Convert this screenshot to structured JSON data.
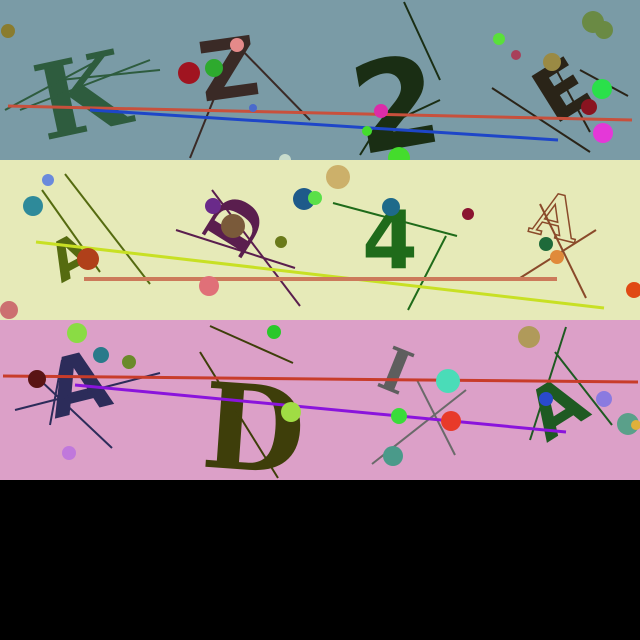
{
  "background": "#000000",
  "panels": [
    {
      "name": "top",
      "color": "#7a9ba6",
      "characters": [
        {
          "text": "K",
          "color": "#2e5c3e"
        },
        {
          "text": "Z",
          "color": "#3a2a26"
        },
        {
          "text": "2",
          "color": "#1a2e14"
        },
        {
          "text": "E",
          "color": "#2a2418"
        }
      ]
    },
    {
      "name": "middle",
      "color": "#e6eab8",
      "characters": [
        {
          "text": "A",
          "color": "#556b10"
        },
        {
          "text": "D",
          "color": "#5a1e4e"
        },
        {
          "text": "4",
          "color": "#1f6b1a"
        },
        {
          "text": "A",
          "color": "#8a4a2a"
        }
      ]
    },
    {
      "name": "bottom",
      "color": "#dca0c8",
      "characters": [
        {
          "text": "A",
          "color": "#2c2c5a"
        },
        {
          "text": "D",
          "color": "#3e3e0a"
        },
        {
          "text": "I",
          "color": "#5e5e5e"
        },
        {
          "text": "A",
          "color": "#1e5a22"
        }
      ]
    }
  ]
}
